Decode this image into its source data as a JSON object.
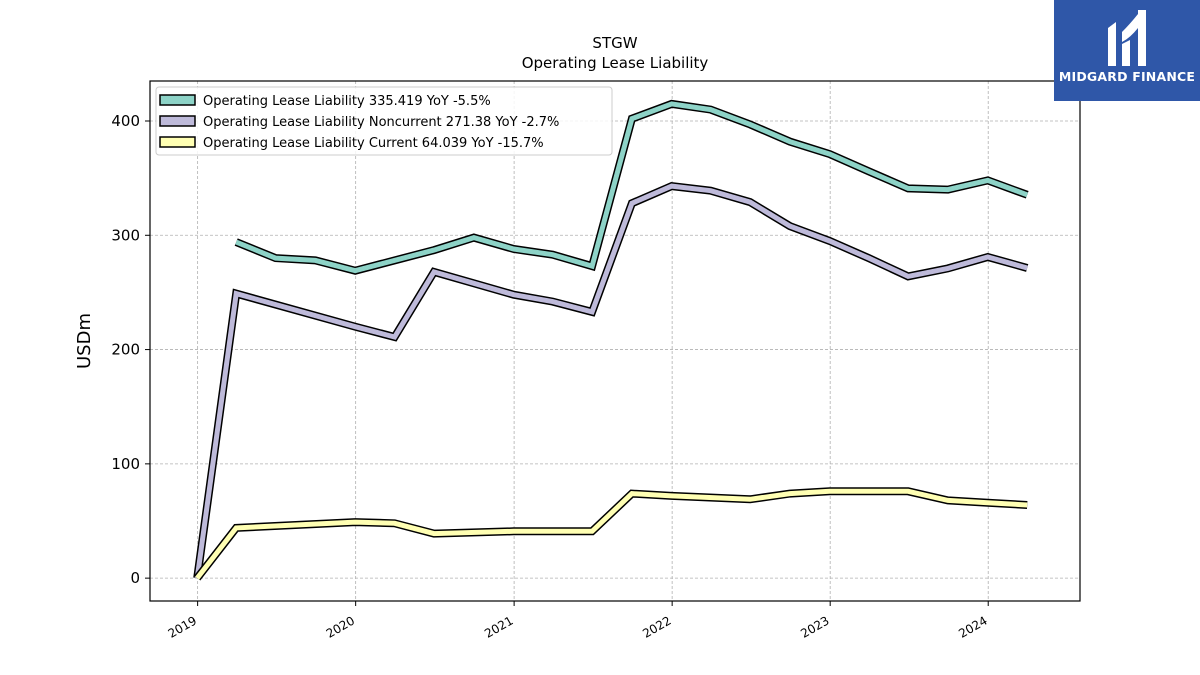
{
  "brand": {
    "name": "MIDGARD FINANCE",
    "bg_color": "#2f57a8"
  },
  "chart_data": {
    "type": "line",
    "title": "STGW",
    "subtitle": "Operating Lease Liability",
    "ylabel": "USDm",
    "xlabel": "",
    "ylim": [
      -20,
      435
    ],
    "yticks": [
      0,
      100,
      200,
      300,
      400
    ],
    "xlim": [
      "2018-09-13",
      "2024-07-31"
    ],
    "xticks": [
      {
        "date": "2019-01-01",
        "label": "2019"
      },
      {
        "date": "2020-01-01",
        "label": "2020"
      },
      {
        "date": "2021-01-01",
        "label": "2021"
      },
      {
        "date": "2022-01-01",
        "label": "2022"
      },
      {
        "date": "2023-01-01",
        "label": "2023"
      },
      {
        "date": "2024-01-01",
        "label": "2024"
      }
    ],
    "grid": true,
    "legend_position": "top-left",
    "series": [
      {
        "name": "Operating Lease Liability  335.419 YoY -5.5%",
        "color": "#8dd3c7",
        "points": [
          [
            "2019-03-31",
            294
          ],
          [
            "2019-06-30",
            280
          ],
          [
            "2019-09-30",
            278
          ],
          [
            "2019-12-31",
            269
          ],
          [
            "2020-06-30",
            287
          ],
          [
            "2020-09-30",
            298
          ],
          [
            "2020-12-31",
            288
          ],
          [
            "2021-03-31",
            283
          ],
          [
            "2021-06-30",
            273
          ],
          [
            "2021-09-30",
            402
          ],
          [
            "2021-12-31",
            415
          ],
          [
            "2022-03-31",
            410
          ],
          [
            "2022-06-30",
            397
          ],
          [
            "2022-09-30",
            382
          ],
          [
            "2022-12-31",
            371
          ],
          [
            "2023-03-31",
            356
          ],
          [
            "2023-06-30",
            341
          ],
          [
            "2023-09-30",
            340
          ],
          [
            "2023-12-31",
            348
          ],
          [
            "2024-03-31",
            335.419
          ]
        ]
      },
      {
        "name": "Operating Lease Liability Noncurrent  271.38 YoY -2.7%",
        "color": "#bebada",
        "points": [
          [
            "2018-12-31",
            0
          ],
          [
            "2019-03-31",
            249
          ],
          [
            "2019-12-31",
            220
          ],
          [
            "2020-03-31",
            211
          ],
          [
            "2020-06-30",
            268
          ],
          [
            "2020-09-30",
            258
          ],
          [
            "2020-12-31",
            248
          ],
          [
            "2021-03-31",
            242
          ],
          [
            "2021-06-30",
            233
          ],
          [
            "2021-09-30",
            328
          ],
          [
            "2021-12-31",
            343
          ],
          [
            "2022-03-31",
            339
          ],
          [
            "2022-06-30",
            329
          ],
          [
            "2022-09-30",
            308
          ],
          [
            "2022-12-31",
            295
          ],
          [
            "2023-03-31",
            280
          ],
          [
            "2023-06-30",
            264
          ],
          [
            "2023-09-30",
            271
          ],
          [
            "2023-12-31",
            281
          ],
          [
            "2024-03-31",
            271.38
          ]
        ]
      },
      {
        "name": "Operating Lease Liability Current  64.039 YoY -15.7%",
        "color": "#ffffb3",
        "points": [
          [
            "2018-12-31",
            0
          ],
          [
            "2019-03-31",
            44
          ],
          [
            "2019-12-31",
            49
          ],
          [
            "2020-03-31",
            48
          ],
          [
            "2020-06-30",
            39
          ],
          [
            "2020-12-31",
            41
          ],
          [
            "2021-06-30",
            41
          ],
          [
            "2021-09-30",
            74
          ],
          [
            "2021-12-31",
            72
          ],
          [
            "2022-06-30",
            69
          ],
          [
            "2022-09-30",
            74
          ],
          [
            "2022-12-31",
            76
          ],
          [
            "2023-03-31",
            76
          ],
          [
            "2023-06-30",
            76
          ],
          [
            "2023-09-30",
            68
          ],
          [
            "2023-12-31",
            66
          ],
          [
            "2024-03-31",
            64.039
          ]
        ]
      }
    ]
  }
}
